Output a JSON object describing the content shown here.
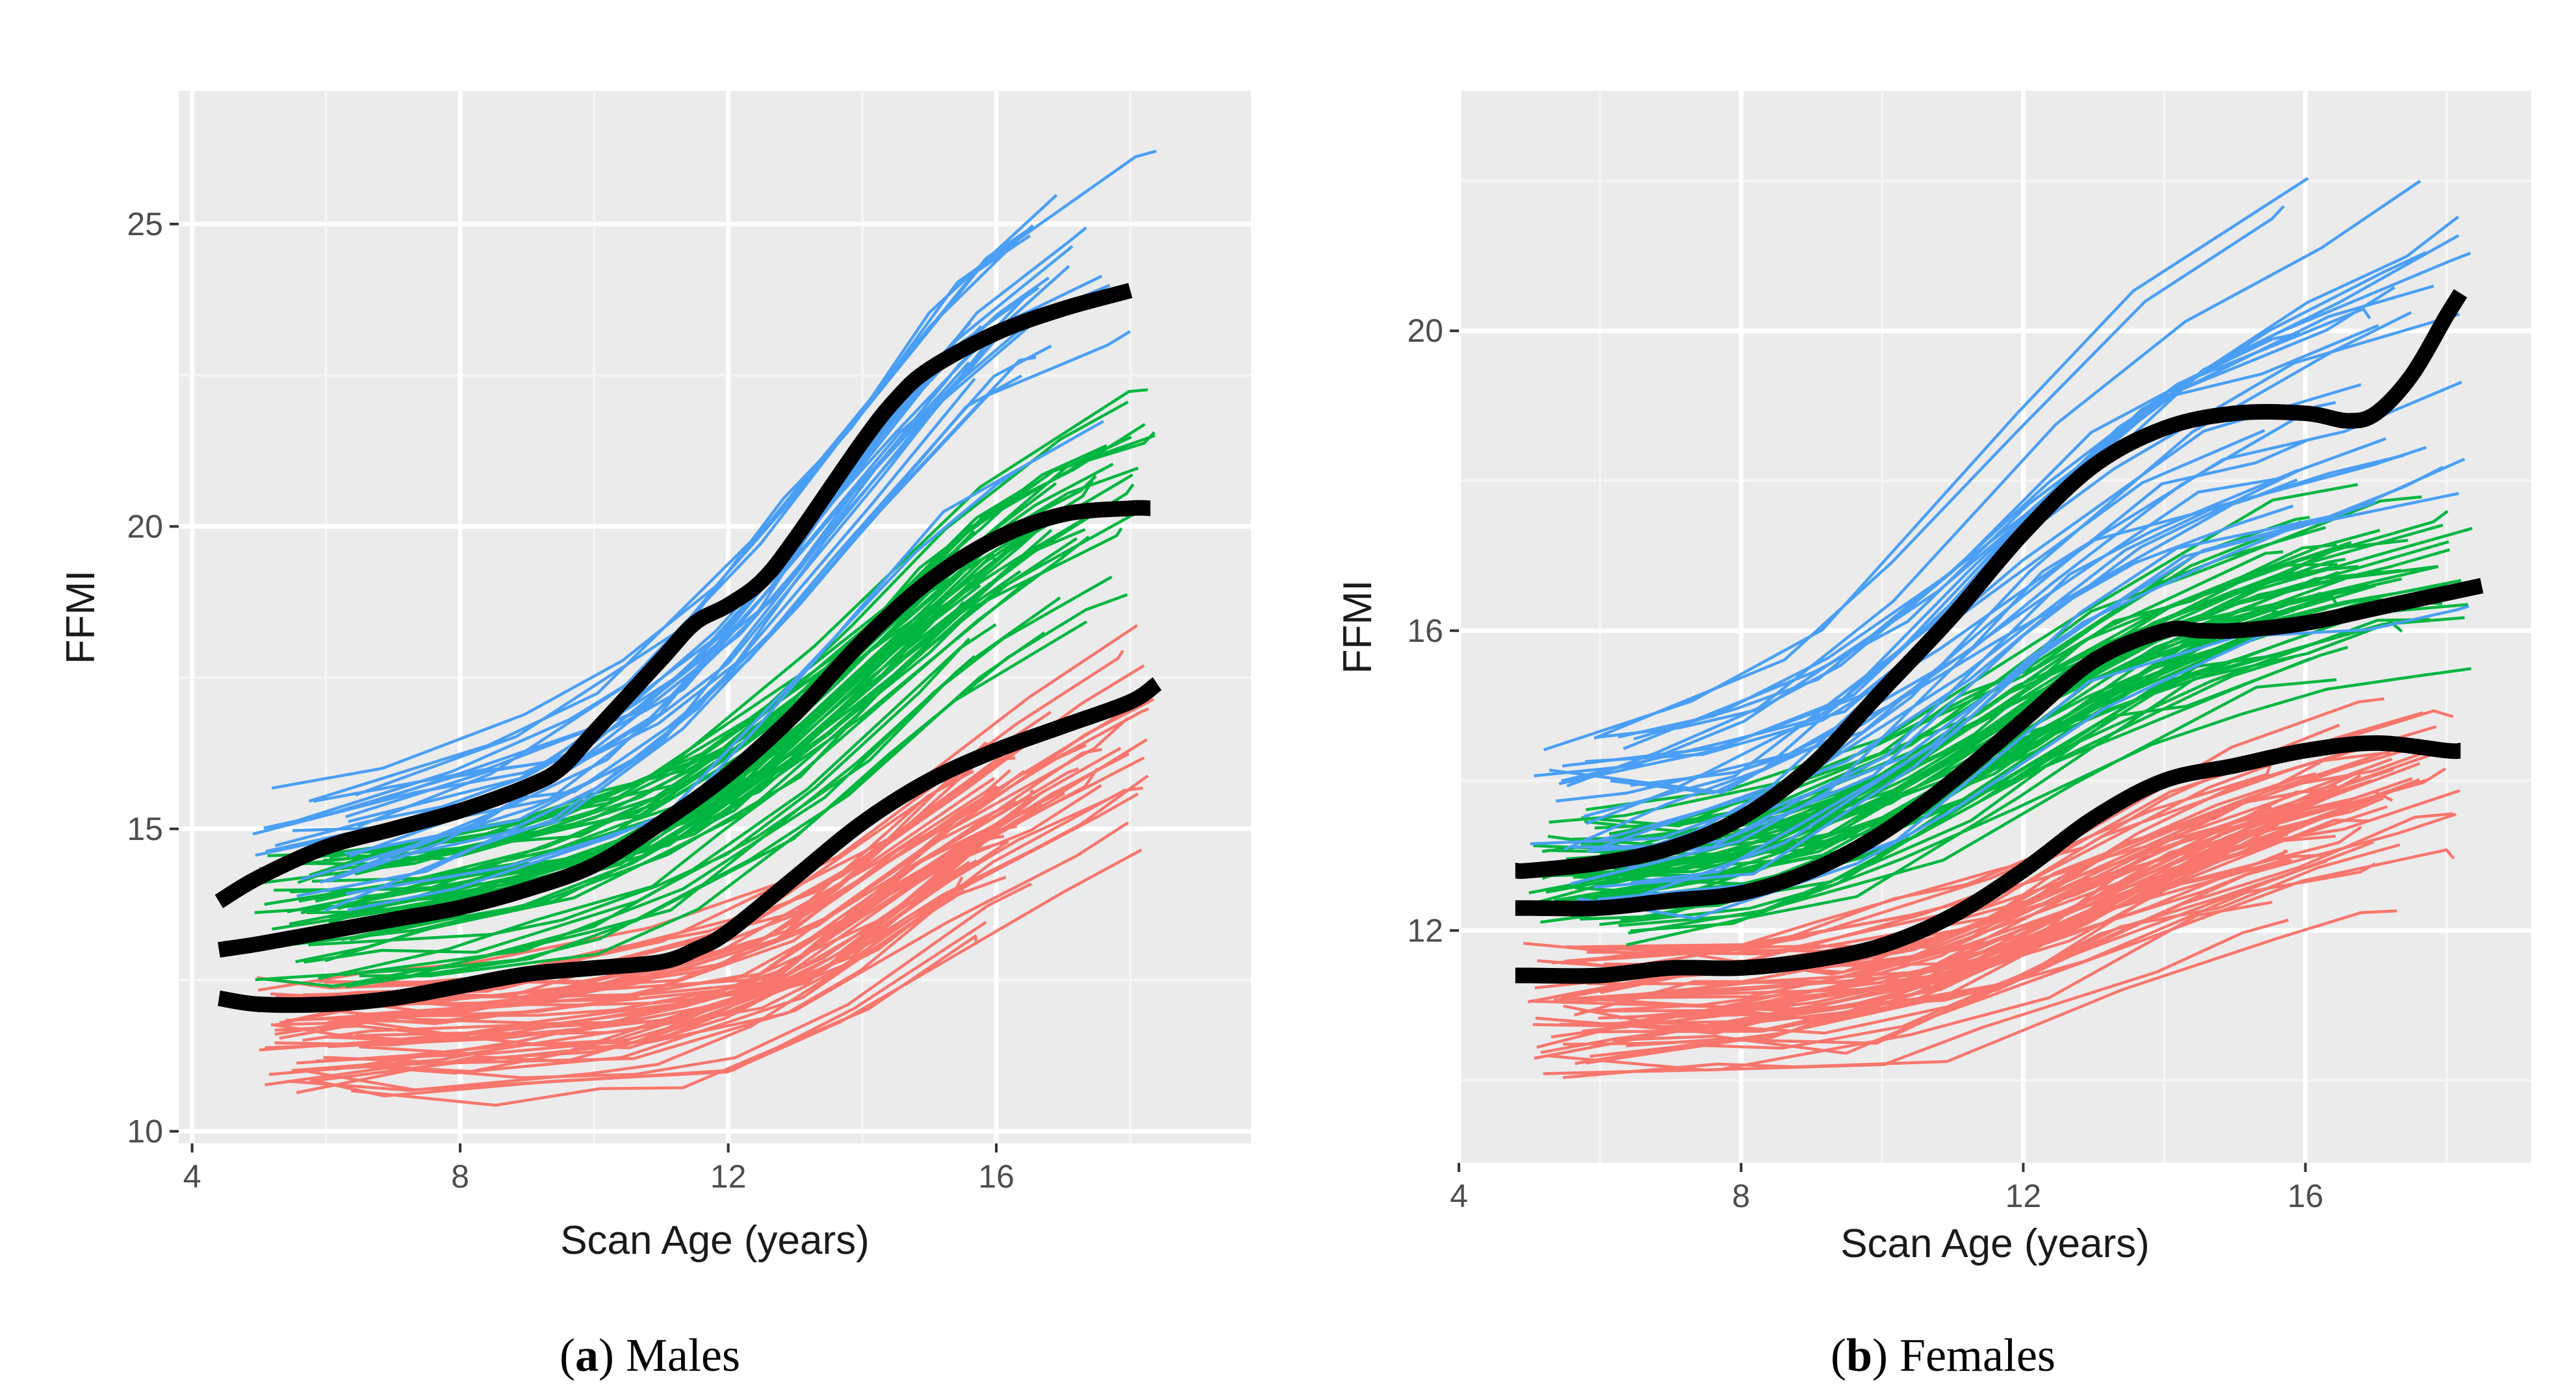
{
  "figure": {
    "palette": {
      "panel_bg": "#ebebeb",
      "grid_major": "#ffffff",
      "grid_minor": "#f5f5f5",
      "axis_text": "#4d4d4d",
      "centile_line": "#000000"
    }
  },
  "chart_data": [
    {
      "type": "line",
      "panel": "a",
      "caption_letter": "a",
      "caption_text": "Males",
      "xlabel": "Scan Age (years)",
      "ylabel": "FFMI",
      "xlim": [
        3.8,
        19.8
      ],
      "ylim": [
        9.8,
        27.2
      ],
      "xticks": [
        4,
        8,
        12,
        16
      ],
      "yticks": [
        10,
        15,
        20,
        25
      ],
      "xtick_labels": [
        "4",
        "8",
        "12",
        "16"
      ],
      "ytick_labels": [
        "10",
        "15",
        "20",
        "25"
      ],
      "grid": true,
      "centile_curves": [
        {
          "name": "upper centile",
          "color": "#000000",
          "x": [
            4.4,
            5,
            6,
            7,
            8,
            9,
            9.5,
            10,
            11,
            11.5,
            12,
            12.5,
            13,
            14,
            14.5,
            15,
            16,
            17,
            18
          ],
          "y": [
            13.8,
            14.2,
            14.7,
            15.0,
            15.3,
            15.7,
            16.0,
            16.6,
            17.8,
            18.4,
            18.7,
            19.1,
            19.8,
            21.4,
            22.1,
            22.6,
            23.2,
            23.6,
            23.9
          ]
        },
        {
          "name": "median centile",
          "color": "#000000",
          "x": [
            4.4,
            5,
            6,
            7,
            8,
            9,
            10,
            11,
            12,
            13,
            14,
            15,
            16,
            17,
            18,
            18.3
          ],
          "y": [
            13.0,
            13.1,
            13.3,
            13.5,
            13.7,
            14.0,
            14.4,
            15.1,
            15.9,
            16.9,
            18.1,
            19.1,
            19.8,
            20.2,
            20.3,
            20.3
          ]
        },
        {
          "name": "lower centile",
          "color": "#000000",
          "x": [
            4.4,
            5,
            6,
            7,
            8,
            9,
            10,
            11,
            11.5,
            12,
            13,
            14,
            15,
            16,
            17,
            18,
            18.4
          ],
          "y": [
            12.2,
            12.1,
            12.1,
            12.2,
            12.4,
            12.6,
            12.7,
            12.8,
            13.0,
            13.3,
            14.2,
            15.1,
            15.8,
            16.3,
            16.7,
            17.1,
            17.4
          ]
        }
      ],
      "trajectory_groups": [
        {
          "name": "high FFMI",
          "color": "#4a9ff5",
          "count": 26,
          "base": [
            14.3,
            14.6,
            15.1,
            15.6,
            16.6,
            18.3,
            20.4,
            22.4,
            23.6,
            24.2
          ],
          "spread": 1.3,
          "tail": 0.3
        },
        {
          "name": "middle FFMI",
          "color": "#00b640",
          "count": 50,
          "base": [
            13.4,
            13.6,
            13.8,
            14.2,
            14.8,
            15.8,
            17.3,
            18.9,
            20.0,
            20.7
          ],
          "spread": 1.1,
          "tail": 0.12
        },
        {
          "name": "low FFMI",
          "color": "#f8766d",
          "count": 54,
          "base": [
            11.6,
            11.7,
            11.7,
            11.9,
            12.1,
            12.5,
            13.5,
            14.8,
            15.7,
            16.6
          ],
          "spread": 0.9,
          "tail": 0.2
        }
      ]
    },
    {
      "type": "line",
      "panel": "b",
      "caption_letter": "b",
      "caption_text": "Females",
      "xlabel": "Scan Age (years)",
      "ylabel": "FFMI",
      "xlim": [
        4.0,
        19.2
      ],
      "ylim": [
        8.9,
        23.2
      ],
      "xticks": [
        4,
        8,
        12,
        16
      ],
      "yticks": [
        12,
        16,
        20
      ],
      "xtick_labels": [
        "4",
        "8",
        "12",
        "16"
      ],
      "ytick_labels": [
        "12",
        "16",
        "20"
      ],
      "grid": true,
      "centile_curves": [
        {
          "name": "upper centile",
          "color": "#000000",
          "x": [
            4.8,
            5,
            6,
            7,
            8,
            9,
            10,
            11,
            12,
            13,
            14,
            15,
            16,
            16.6,
            17,
            17.5,
            18,
            18.2
          ],
          "y": [
            12.8,
            12.8,
            12.9,
            13.1,
            13.5,
            14.2,
            15.2,
            16.2,
            17.3,
            18.2,
            18.7,
            18.9,
            18.9,
            18.8,
            18.9,
            19.4,
            20.2,
            20.5
          ]
        },
        {
          "name": "median centile",
          "color": "#000000",
          "x": [
            4.8,
            5,
            6,
            7,
            8,
            9,
            10,
            11,
            12,
            13,
            14,
            14.5,
            15,
            16,
            17,
            18,
            18.5
          ],
          "y": [
            12.3,
            12.3,
            12.3,
            12.4,
            12.5,
            12.8,
            13.3,
            14.0,
            14.8,
            15.6,
            16.0,
            16.0,
            16.0,
            16.1,
            16.3,
            16.5,
            16.6
          ]
        },
        {
          "name": "lower centile",
          "color": "#000000",
          "x": [
            4.8,
            5,
            6,
            7,
            8,
            9,
            10,
            11,
            12,
            13,
            14,
            15,
            16,
            17,
            18,
            18.2
          ],
          "y": [
            11.4,
            11.4,
            11.4,
            11.5,
            11.5,
            11.6,
            11.8,
            12.2,
            12.8,
            13.5,
            14.0,
            14.2,
            14.4,
            14.5,
            14.4,
            14.4
          ]
        }
      ],
      "trajectory_groups": [
        {
          "name": "high FFMI",
          "color": "#4a9ff5",
          "count": 32,
          "base": [
            13.4,
            13.6,
            13.9,
            14.6,
            15.8,
            17.2,
            18.2,
            18.8,
            19.3,
            19.8
          ],
          "spread": 1.1,
          "tail": 0.4
        },
        {
          "name": "middle FFMI",
          "color": "#00b640",
          "count": 55,
          "base": [
            12.6,
            12.7,
            12.9,
            13.3,
            14.1,
            15.0,
            15.8,
            16.3,
            16.7,
            16.9
          ],
          "spread": 0.8,
          "tail": 0.12
        },
        {
          "name": "low FFMI",
          "color": "#f8766d",
          "count": 58,
          "base": [
            11.0,
            11.0,
            11.1,
            11.2,
            11.5,
            12.1,
            12.8,
            13.3,
            13.7,
            14.0
          ],
          "spread": 0.8,
          "tail": 0.15
        }
      ]
    }
  ]
}
